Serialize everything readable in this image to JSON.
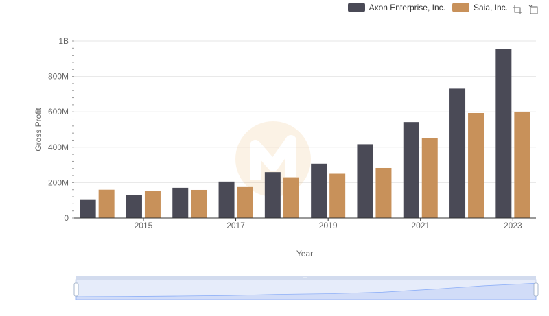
{
  "chart_data": {
    "type": "bar",
    "title": "",
    "xlabel": "Year",
    "ylabel": "Gross Profit",
    "categories": [
      "2014",
      "2015",
      "2016",
      "2017",
      "2018",
      "2019",
      "2020",
      "2021",
      "2022",
      "2023"
    ],
    "x_tick_labels": [
      "2015",
      "2017",
      "2019",
      "2021",
      "2023"
    ],
    "y_tick_labels": [
      "0",
      "200M",
      "400M",
      "600M",
      "800M",
      "1B"
    ],
    "ylim": [
      0,
      1000000000
    ],
    "series": [
      {
        "name": "Axon Enterprise, Inc.",
        "color": "#4a4a56",
        "values": [
          102000000,
          128000000,
          171000000,
          206000000,
          259000000,
          307000000,
          417000000,
          542000000,
          731000000,
          957000000
        ]
      },
      {
        "name": "Saia, Inc.",
        "color": "#c8915a",
        "values": [
          160000000,
          155000000,
          159000000,
          175000000,
          230000000,
          250000000,
          283000000,
          452000000,
          593000000,
          601000000
        ]
      }
    ],
    "legend_position": "top-right",
    "grid": true
  },
  "toolbox": {
    "zoom_icon": "zoom-icon",
    "reset_icon": "zoom-reset-icon"
  },
  "datazoom": {
    "handle_icon": "drag-handle-icon"
  }
}
